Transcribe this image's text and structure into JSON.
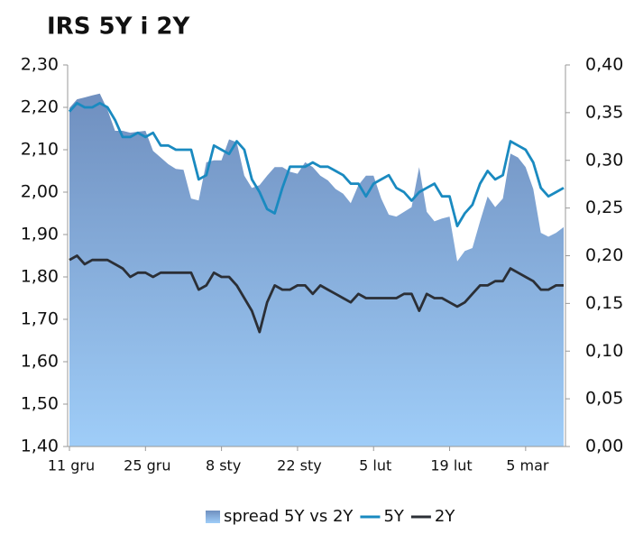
{
  "chart_data": {
    "type": "combo",
    "title": "IRS 5Y i 2Y",
    "categories": [
      "11 gru",
      null,
      null,
      null,
      null,
      null,
      null,
      null,
      null,
      null,
      "25 gru",
      null,
      null,
      null,
      null,
      null,
      null,
      null,
      null,
      null,
      "8 sty",
      null,
      null,
      null,
      null,
      null,
      null,
      null,
      null,
      null,
      "22 sty",
      null,
      null,
      null,
      null,
      null,
      null,
      null,
      null,
      null,
      "5 lut",
      null,
      null,
      null,
      null,
      null,
      null,
      null,
      null,
      null,
      "19 lut",
      null,
      null,
      null,
      null,
      null,
      null,
      null,
      null,
      null,
      "5 mar",
      null,
      null,
      null,
      null,
      null
    ],
    "series": [
      {
        "name": "spread 5Y vs 2Y",
        "type": "area",
        "axis": "y2",
        "color": "#7a9ccc",
        "values": [
          0.355,
          0.364,
          0.366,
          0.368,
          0.37,
          0.353,
          0.331,
          0.331,
          0.329,
          0.33,
          0.331,
          0.31,
          0.303,
          0.296,
          0.291,
          0.29,
          0.26,
          0.258,
          0.298,
          0.3,
          0.3,
          0.322,
          0.319,
          0.284,
          0.271,
          0.274,
          0.284,
          0.293,
          0.293,
          0.288,
          0.286,
          0.298,
          0.293,
          0.284,
          0.279,
          0.27,
          0.265,
          0.255,
          0.274,
          0.284,
          0.284,
          0.26,
          0.243,
          0.241,
          0.246,
          0.251,
          0.293,
          0.246,
          0.236,
          0.239,
          0.241,
          0.194,
          0.205,
          0.208,
          0.236,
          0.262,
          0.251,
          0.26,
          0.307,
          0.303,
          0.293,
          0.27,
          0.224,
          0.22,
          0.224,
          0.23
        ]
      },
      {
        "name": "5Y",
        "type": "line",
        "color": "#1a8ac0",
        "values": [
          2.19,
          2.21,
          2.2,
          2.2,
          2.21,
          2.2,
          2.17,
          2.13,
          2.13,
          2.14,
          2.13,
          2.14,
          2.11,
          2.11,
          2.1,
          2.1,
          2.1,
          2.03,
          2.04,
          2.11,
          2.1,
          2.09,
          2.12,
          2.1,
          2.03,
          2.0,
          1.96,
          1.95,
          2.01,
          2.06,
          2.06,
          2.06,
          2.07,
          2.06,
          2.06,
          2.05,
          2.04,
          2.02,
          2.02,
          1.99,
          2.02,
          2.03,
          2.04,
          2.01,
          2.0,
          1.98,
          2.0,
          2.01,
          2.02,
          1.99,
          1.99,
          1.92,
          1.95,
          1.97,
          2.02,
          2.05,
          2.03,
          2.04,
          2.12,
          2.11,
          2.1,
          2.07,
          2.01,
          1.99,
          2.0,
          2.01
        ]
      },
      {
        "name": "2Y",
        "type": "line",
        "color": "#2b2f36",
        "values": [
          1.84,
          1.85,
          1.83,
          1.84,
          1.84,
          1.84,
          1.83,
          1.82,
          1.8,
          1.81,
          1.81,
          1.8,
          1.81,
          1.81,
          1.81,
          1.81,
          1.81,
          1.77,
          1.78,
          1.81,
          1.8,
          1.8,
          1.78,
          1.75,
          1.72,
          1.67,
          1.74,
          1.78,
          1.77,
          1.77,
          1.78,
          1.78,
          1.76,
          1.78,
          1.77,
          1.76,
          1.75,
          1.74,
          1.76,
          1.75,
          1.75,
          1.75,
          1.75,
          1.75,
          1.76,
          1.76,
          1.72,
          1.76,
          1.75,
          1.75,
          1.74,
          1.73,
          1.74,
          1.76,
          1.78,
          1.78,
          1.79,
          1.79,
          1.82,
          1.81,
          1.8,
          1.79,
          1.77,
          1.77,
          1.78,
          1.78
        ]
      }
    ],
    "ylim": [
      1.4,
      2.3
    ],
    "yticks": [
      {
        "value": 1.4,
        "label": "1,40"
      },
      {
        "value": 1.5,
        "label": "1,50"
      },
      {
        "value": 1.6,
        "label": "1,60"
      },
      {
        "value": 1.7,
        "label": "1,70"
      },
      {
        "value": 1.8,
        "label": "1,80"
      },
      {
        "value": 1.9,
        "label": "1,90"
      },
      {
        "value": 2.0,
        "label": "2,00"
      },
      {
        "value": 2.1,
        "label": "2,10"
      },
      {
        "value": 2.2,
        "label": "2,20"
      },
      {
        "value": 2.3,
        "label": "2,30"
      }
    ],
    "y2lim": [
      0,
      0.4
    ],
    "y2ticks": [
      {
        "value": 0,
        "label": "0,00"
      },
      {
        "value": 0.05,
        "label": "0,05"
      },
      {
        "value": 0.1,
        "label": "0,10"
      },
      {
        "value": 0.15,
        "label": "0,15"
      },
      {
        "value": 0.2,
        "label": "0,20"
      },
      {
        "value": 0.25,
        "label": "0,25"
      },
      {
        "value": 0.3,
        "label": "0,30"
      },
      {
        "value": 0.35,
        "label": "0,35"
      },
      {
        "value": 0.4,
        "label": "0,40"
      }
    ],
    "legend": "bottom",
    "grid": false
  }
}
